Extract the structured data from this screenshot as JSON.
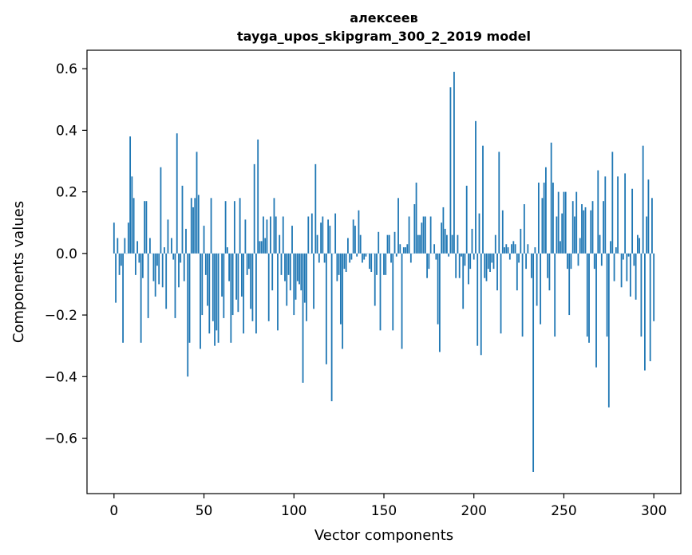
{
  "chart_data": {
    "type": "bar",
    "title_line1": "алексеев",
    "title_line2": "tayga_upos_skipgram_300_2_2019 model",
    "xlabel": "Vector components",
    "ylabel": "Components values",
    "xlim": [
      -15,
      315
    ],
    "ylim": [
      -0.78,
      0.66
    ],
    "xticks": [
      0,
      50,
      100,
      150,
      200,
      250,
      300
    ],
    "xtick_labels": [
      "0",
      "50",
      "100",
      "150",
      "200",
      "250",
      "300"
    ],
    "yticks": [
      -0.6,
      -0.4,
      -0.2,
      0.0,
      0.2,
      0.4,
      0.6
    ],
    "ytick_labels": [
      "−0.6",
      "−0.4",
      "−0.2",
      "0.0",
      "0.2",
      "0.4",
      "0.6"
    ],
    "bar_color": "#1f77b4",
    "values": [
      0.1,
      -0.16,
      0.05,
      -0.07,
      -0.04,
      -0.29,
      0.05,
      0.0,
      0.1,
      0.38,
      0.25,
      0.18,
      -0.07,
      0.04,
      -0.03,
      -0.29,
      -0.08,
      0.17,
      0.17,
      -0.21,
      0.05,
      0.0,
      -0.09,
      -0.14,
      -0.04,
      -0.1,
      0.28,
      -0.11,
      0.02,
      -0.18,
      0.11,
      0.0,
      0.05,
      -0.02,
      -0.21,
      0.39,
      -0.11,
      -0.03,
      0.22,
      -0.09,
      0.08,
      -0.4,
      -0.29,
      0.18,
      0.15,
      0.18,
      0.33,
      0.19,
      -0.31,
      -0.2,
      0.09,
      -0.07,
      -0.17,
      -0.26,
      0.18,
      -0.22,
      -0.3,
      -0.25,
      -0.29,
      0.0,
      -0.14,
      -0.21,
      0.17,
      0.02,
      -0.09,
      -0.29,
      -0.2,
      0.17,
      -0.15,
      -0.19,
      0.18,
      -0.14,
      -0.26,
      0.11,
      -0.07,
      -0.05,
      -0.18,
      -0.22,
      0.29,
      -0.26,
      0.37,
      0.04,
      0.04,
      0.12,
      0.05,
      0.11,
      -0.22,
      0.12,
      -0.12,
      0.18,
      0.12,
      -0.25,
      0.06,
      -0.07,
      0.12,
      -0.09,
      -0.17,
      -0.07,
      -0.12,
      0.09,
      -0.2,
      -0.15,
      -0.09,
      -0.1,
      -0.12,
      -0.42,
      -0.16,
      -0.22,
      0.12,
      0.0,
      0.13,
      -0.18,
      0.29,
      0.06,
      -0.03,
      0.1,
      0.12,
      -0.03,
      -0.36,
      0.11,
      0.09,
      -0.48,
      0.0,
      0.13,
      -0.09,
      -0.07,
      -0.23,
      -0.31,
      -0.05,
      -0.06,
      0.05,
      -0.03,
      -0.02,
      0.11,
      0.09,
      -0.01,
      0.14,
      0.06,
      -0.03,
      -0.02,
      -0.01,
      0.0,
      -0.05,
      -0.06,
      0.0,
      -0.17,
      -0.07,
      0.07,
      -0.25,
      0.0,
      -0.07,
      -0.07,
      0.06,
      0.06,
      -0.03,
      -0.25,
      0.07,
      -0.01,
      0.18,
      0.03,
      -0.31,
      0.02,
      0.02,
      0.03,
      0.12,
      -0.03,
      0.0,
      0.16,
      0.23,
      0.06,
      0.06,
      0.1,
      0.12,
      0.12,
      -0.08,
      -0.05,
      0.12,
      0.0,
      0.03,
      -0.02,
      -0.23,
      -0.32,
      0.1,
      0.15,
      0.08,
      0.06,
      -0.01,
      0.54,
      0.06,
      0.59,
      -0.08,
      0.06,
      -0.08,
      -0.01,
      -0.18,
      -0.04,
      0.22,
      -0.1,
      -0.05,
      0.08,
      -0.02,
      0.43,
      -0.3,
      0.13,
      -0.33,
      0.35,
      -0.08,
      -0.09,
      -0.05,
      -0.06,
      -0.03,
      -0.05,
      0.06,
      -0.12,
      0.33,
      -0.26,
      0.14,
      0.02,
      0.03,
      0.02,
      -0.02,
      0.03,
      0.04,
      0.03,
      -0.12,
      -0.03,
      0.08,
      -0.27,
      0.16,
      -0.05,
      0.03,
      0.0,
      -0.08,
      -0.71,
      0.02,
      -0.17,
      0.23,
      -0.23,
      0.18,
      0.23,
      0.28,
      -0.08,
      -0.12,
      0.36,
      0.23,
      -0.27,
      0.12,
      0.2,
      0.04,
      0.13,
      0.2,
      0.2,
      -0.05,
      -0.2,
      -0.05,
      0.17,
      0.12,
      0.2,
      -0.04,
      0.05,
      0.16,
      0.14,
      0.15,
      -0.27,
      -0.29,
      0.14,
      0.17,
      -0.05,
      -0.37,
      0.27,
      0.06,
      -0.04,
      0.17,
      0.25,
      -0.27,
      -0.5,
      0.04,
      0.33,
      -0.09,
      0.02,
      0.25,
      0.0,
      -0.11,
      -0.02,
      0.26,
      -0.09,
      -0.01,
      -0.14,
      0.21,
      -0.04,
      -0.15,
      0.06,
      0.05,
      -0.27,
      0.35,
      -0.38,
      0.12,
      0.24,
      -0.35,
      0.18,
      -0.22
    ]
  }
}
